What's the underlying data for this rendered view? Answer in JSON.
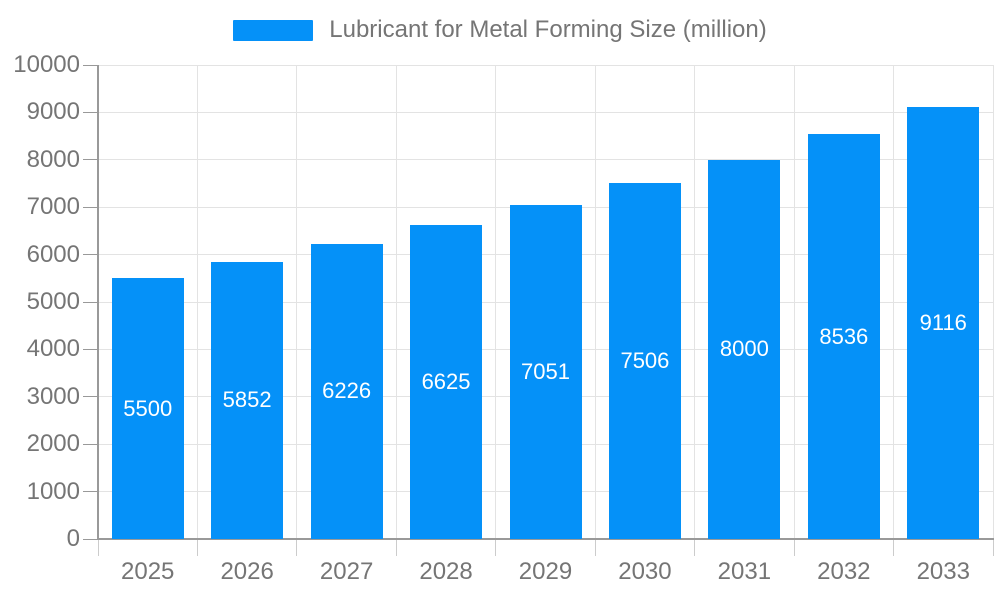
{
  "legend": {
    "series_label": "Lubricant for Metal Forming Size (million)",
    "swatch_color": "#0591f8"
  },
  "colors": {
    "bar": "#0591f8",
    "bar_label_text": "#ffffff",
    "axis_text": "#757575",
    "axis_line": "#999999",
    "gridline": "#e3e3e3",
    "tick": "#cccccc",
    "background": "#ffffff"
  },
  "chart_data": {
    "type": "bar",
    "title": "",
    "legend_position": "top",
    "grid": true,
    "categories": [
      "2025",
      "2026",
      "2027",
      "2028",
      "2029",
      "2030",
      "2031",
      "2032",
      "2033"
    ],
    "series": [
      {
        "name": "Lubricant for Metal Forming Size (million)",
        "values": [
          5500,
          5852,
          6226,
          6625,
          7051,
          7506,
          8000,
          8536,
          9116
        ]
      }
    ],
    "xlabel": "",
    "ylabel": "",
    "ylim": [
      0,
      10000
    ],
    "yticks": [
      0,
      1000,
      2000,
      3000,
      4000,
      5000,
      6000,
      7000,
      8000,
      9000,
      10000
    ],
    "bar_value_labels_visible": true
  }
}
